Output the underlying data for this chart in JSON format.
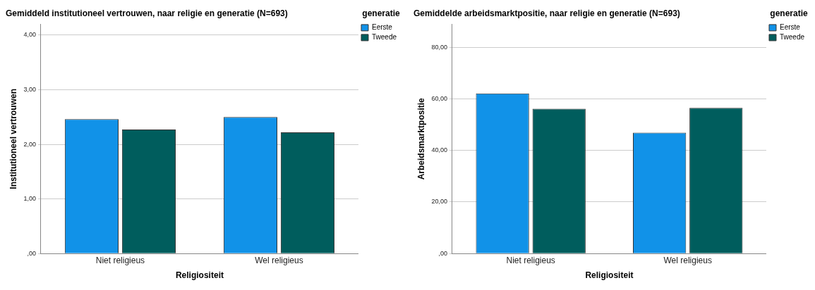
{
  "chart_data": [
    {
      "type": "bar",
      "title": "Gemiddeld institutioneel vertrouwen, naar religie en generatie (N=693)",
      "xlabel": "Religiositeit",
      "ylabel": "Institutioneel vertrouwen",
      "legend_title": "generatie",
      "categories": [
        "Niet religieus",
        "Wel religieus"
      ],
      "series": [
        {
          "name": "Eerste",
          "color": "#1192e8",
          "values": [
            2.46,
            2.5
          ]
        },
        {
          "name": "Tweede",
          "color": "#005d5d",
          "values": [
            2.27,
            2.22
          ]
        }
      ],
      "ylim": [
        0,
        4.2
      ],
      "yticks": [
        {
          "value": 0,
          "label": ",00"
        },
        {
          "value": 1,
          "label": "1,00"
        },
        {
          "value": 2,
          "label": "2,00"
        },
        {
          "value": 3,
          "label": "3,00"
        },
        {
          "value": 4,
          "label": "4,00"
        }
      ],
      "grid": "y",
      "legend": "top right"
    },
    {
      "type": "bar",
      "title": "Gemiddelde arbeidsmarktpositie, naar religie en generatie (N=693)",
      "xlabel": "Religiositeit",
      "ylabel": "Arbeidsmarktpositie",
      "legend_title": "generatie",
      "categories": [
        "Niet religieus",
        "Wel religieus"
      ],
      "series": [
        {
          "name": "Eerste",
          "color": "#1192e8",
          "values": [
            62.1,
            46.9
          ]
        },
        {
          "name": "Tweede",
          "color": "#005d5d",
          "values": [
            56.2,
            56.5
          ]
        }
      ],
      "ylim": [
        0,
        89
      ],
      "yticks": [
        {
          "value": 0,
          "label": ",00"
        },
        {
          "value": 20,
          "label": "20,00"
        },
        {
          "value": 40,
          "label": "40,00"
        },
        {
          "value": 60,
          "label": "60,00"
        },
        {
          "value": 80,
          "label": "80,00"
        }
      ],
      "grid": "y",
      "legend": "top right"
    }
  ]
}
